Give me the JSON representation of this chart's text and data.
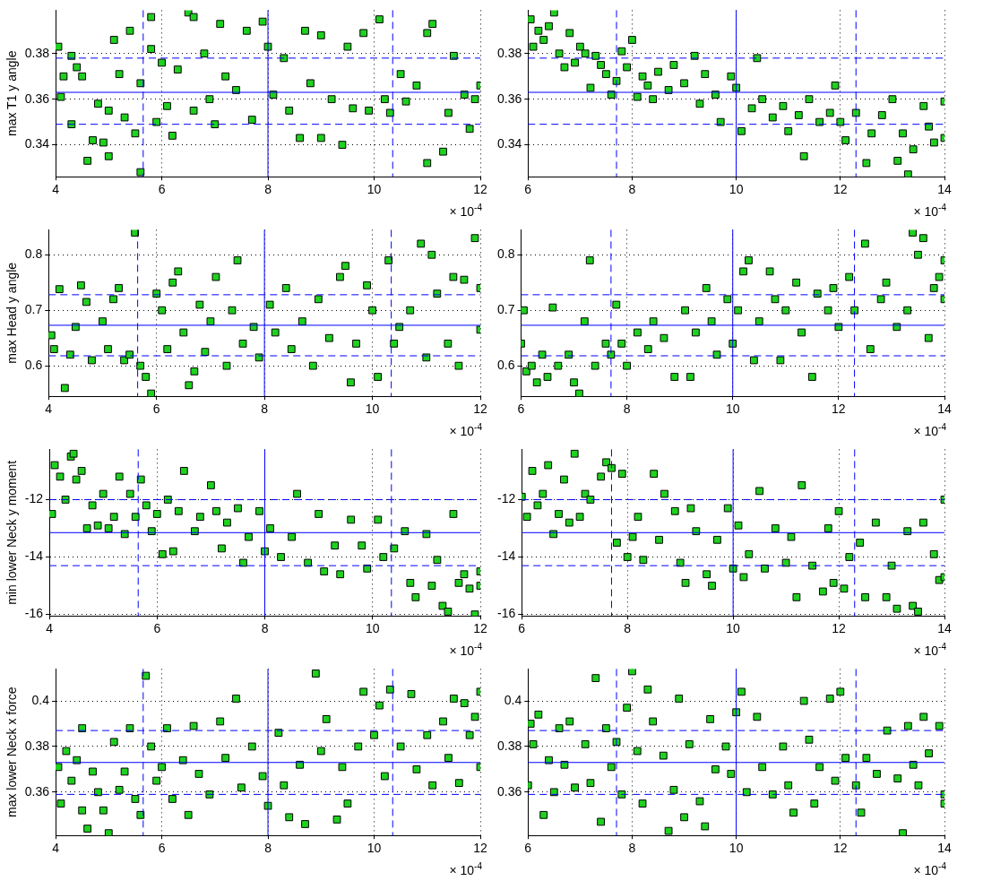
{
  "chart_data": [
    {
      "type": "scatter",
      "ylabel": "max T1 y angle",
      "xlabel": "× 10$^{-4}$",
      "color": "#1fd21f",
      "marker": "square",
      "grid": true,
      "xlim": [
        4,
        12
      ],
      "xticks": [
        4,
        6,
        8,
        10,
        12
      ],
      "ylim": [
        0.326,
        0.399
      ],
      "yticks": [
        0.34,
        0.36,
        0.38
      ],
      "x": [
        4.05,
        4.15,
        4.1,
        4.3,
        4.4,
        4.3,
        4.5,
        4.6,
        4.7,
        4.8,
        4.9,
        5.0,
        5.0,
        5.1,
        5.2,
        5.3,
        5.4,
        5.5,
        5.6,
        5.6,
        5.8,
        5.8,
        5.9,
        6.0,
        6.1,
        6.2,
        6.3,
        6.5,
        6.6,
        6.6,
        6.8,
        6.9,
        7.0,
        7.1,
        7.2,
        7.4,
        7.6,
        7.7,
        7.9,
        8.0,
        8.1,
        8.3,
        8.4,
        8.6,
        8.7,
        8.8,
        9.0,
        9.0,
        9.2,
        9.4,
        9.5,
        9.6,
        9.8,
        9.9,
        10.1,
        10.2,
        10.3,
        10.5,
        10.6,
        10.8,
        11.0,
        11.0,
        11.1,
        11.3,
        11.4,
        11.5,
        11.7,
        11.8,
        11.9,
        12.0
      ],
      "values": [
        0.383,
        0.37,
        0.361,
        0.379,
        0.374,
        0.349,
        0.37,
        0.333,
        0.342,
        0.358,
        0.341,
        0.335,
        0.355,
        0.386,
        0.371,
        0.352,
        0.39,
        0.345,
        0.328,
        0.367,
        0.396,
        0.382,
        0.35,
        0.376,
        0.357,
        0.344,
        0.373,
        0.398,
        0.396,
        0.355,
        0.38,
        0.36,
        0.349,
        0.393,
        0.37,
        0.364,
        0.39,
        0.351,
        0.394,
        0.383,
        0.362,
        0.378,
        0.355,
        0.343,
        0.39,
        0.367,
        0.343,
        0.388,
        0.36,
        0.34,
        0.383,
        0.356,
        0.389,
        0.355,
        0.395,
        0.36,
        0.354,
        0.371,
        0.359,
        0.366,
        0.332,
        0.389,
        0.393,
        0.337,
        0.354,
        0.379,
        0.362,
        0.347,
        0.36,
        0.366
      ],
      "ref_lines": [
        {
          "axis": "x",
          "value": 8,
          "color": "#0000ff",
          "line_style": "solid"
        },
        {
          "axis": "x",
          "value": 5.65,
          "color": "#0000ff",
          "line_style": "dashed"
        },
        {
          "axis": "x",
          "value": 10.35,
          "color": "#0000ff",
          "line_style": "dashed"
        },
        {
          "axis": "y",
          "value": 0.363,
          "color": "#0000ff",
          "line_style": "solid"
        },
        {
          "axis": "y",
          "value": 0.378,
          "color": "#0000ff",
          "line_style": "dashed"
        },
        {
          "axis": "y",
          "value": 0.349,
          "color": "#0000ff",
          "line_style": "dashed"
        }
      ]
    },
    {
      "type": "scatter",
      "xlabel": "× 10$^{-4}$",
      "color": "#1fd21f",
      "marker": "square",
      "grid": true,
      "xlim": [
        6,
        14
      ],
      "xticks": [
        6,
        8,
        10,
        12,
        14
      ],
      "ylim": [
        0.326,
        0.399
      ],
      "yticks": [
        0.34,
        0.36,
        0.38
      ],
      "x": [
        6.05,
        6.1,
        6.2,
        6.3,
        6.4,
        6.5,
        6.6,
        6.7,
        6.8,
        6.9,
        7.0,
        7.1,
        7.2,
        7.3,
        7.4,
        7.5,
        7.6,
        7.7,
        7.8,
        7.9,
        8.0,
        8.1,
        8.2,
        8.3,
        8.4,
        8.5,
        8.7,
        8.8,
        9.0,
        9.2,
        9.3,
        9.4,
        9.6,
        9.7,
        9.9,
        10.0,
        10.1,
        10.3,
        10.4,
        10.5,
        10.7,
        10.9,
        11.0,
        11.2,
        11.3,
        11.4,
        11.6,
        11.8,
        11.9,
        12.0,
        12.1,
        12.3,
        12.5,
        12.6,
        12.8,
        13.0,
        13.1,
        13.2,
        13.3,
        13.4,
        13.6,
        13.7,
        13.8,
        14.0,
        14.0
      ],
      "values": [
        0.395,
        0.383,
        0.39,
        0.386,
        0.392,
        0.398,
        0.38,
        0.374,
        0.389,
        0.376,
        0.383,
        0.38,
        0.365,
        0.379,
        0.375,
        0.371,
        0.362,
        0.368,
        0.381,
        0.374,
        0.386,
        0.361,
        0.37,
        0.366,
        0.36,
        0.372,
        0.364,
        0.375,
        0.367,
        0.379,
        0.358,
        0.371,
        0.362,
        0.35,
        0.37,
        0.365,
        0.346,
        0.356,
        0.378,
        0.36,
        0.352,
        0.357,
        0.346,
        0.353,
        0.335,
        0.36,
        0.35,
        0.354,
        0.366,
        0.35,
        0.342,
        0.354,
        0.332,
        0.345,
        0.353,
        0.36,
        0.333,
        0.345,
        0.327,
        0.338,
        0.357,
        0.348,
        0.341,
        0.359,
        0.343
      ],
      "ref_lines": [
        {
          "axis": "x",
          "value": 10,
          "color": "#0000ff",
          "line_style": "solid"
        },
        {
          "axis": "x",
          "value": 7.7,
          "color": "#0000ff",
          "line_style": "dashed"
        },
        {
          "axis": "x",
          "value": 12.3,
          "color": "#0000ff",
          "line_style": "dashed"
        },
        {
          "axis": "y",
          "value": 0.363,
          "color": "#0000ff",
          "line_style": "solid"
        },
        {
          "axis": "y",
          "value": 0.378,
          "color": "#0000ff",
          "line_style": "dashed"
        },
        {
          "axis": "y",
          "value": 0.349,
          "color": "#0000ff",
          "line_style": "dashed"
        }
      ]
    },
    {
      "type": "scatter",
      "ylabel": "max Head y angle",
      "xlabel": "× 10$^{-4}$",
      "color": "#1fd21f",
      "marker": "square",
      "grid": true,
      "xlim": [
        4,
        12
      ],
      "xticks": [
        4,
        6,
        8,
        10,
        12
      ],
      "ylim": [
        0.545,
        0.845
      ],
      "yticks": [
        0.6,
        0.7,
        0.8
      ],
      "x": [
        4.05,
        4.1,
        4.2,
        4.3,
        4.4,
        4.5,
        4.6,
        4.7,
        4.8,
        5.0,
        5.1,
        5.2,
        5.3,
        5.4,
        5.5,
        5.6,
        5.7,
        5.8,
        5.9,
        6.0,
        6.1,
        6.2,
        6.3,
        6.4,
        6.5,
        6.6,
        6.7,
        6.8,
        6.9,
        7.0,
        7.1,
        7.3,
        7.4,
        7.5,
        7.6,
        7.8,
        7.9,
        8.1,
        8.2,
        8.4,
        8.5,
        8.7,
        8.9,
        9.0,
        9.2,
        9.4,
        9.5,
        9.6,
        9.7,
        9.9,
        10.0,
        10.1,
        10.3,
        10.4,
        10.5,
        10.7,
        10.9,
        11.0,
        11.1,
        11.2,
        11.4,
        11.5,
        11.6,
        11.7,
        11.9,
        12.0,
        12.0
      ],
      "values": [
        0.655,
        0.63,
        0.738,
        0.56,
        0.62,
        0.67,
        0.745,
        0.715,
        0.61,
        0.68,
        0.63,
        0.72,
        0.74,
        0.61,
        0.62,
        0.84,
        0.6,
        0.58,
        0.55,
        0.73,
        0.7,
        0.63,
        0.75,
        0.77,
        0.66,
        0.565,
        0.59,
        0.71,
        0.625,
        0.68,
        0.76,
        0.6,
        0.7,
        0.79,
        0.64,
        0.67,
        0.615,
        0.71,
        0.66,
        0.74,
        0.63,
        0.68,
        0.6,
        0.72,
        0.65,
        0.76,
        0.78,
        0.57,
        0.64,
        0.745,
        0.7,
        0.58,
        0.79,
        0.64,
        0.67,
        0.7,
        0.82,
        0.615,
        0.8,
        0.73,
        0.64,
        0.76,
        0.6,
        0.755,
        0.83,
        0.74,
        0.665
      ],
      "ref_lines": [
        {
          "axis": "x",
          "value": 8,
          "color": "#0000ff",
          "line_style": "solid"
        },
        {
          "axis": "x",
          "value": 5.65,
          "color": "#0000ff",
          "line_style": "dashed"
        },
        {
          "axis": "x",
          "value": 10.35,
          "color": "#0000ff",
          "line_style": "dashed"
        },
        {
          "axis": "y",
          "value": 0.673,
          "color": "#0000ff",
          "line_style": "solid"
        },
        {
          "axis": "y",
          "value": 0.728,
          "color": "#0000ff",
          "line_style": "dashed"
        },
        {
          "axis": "y",
          "value": 0.618,
          "color": "#0000ff",
          "line_style": "dashed"
        }
      ]
    },
    {
      "type": "scatter",
      "xlabel": "× 10$^{-4}$",
      "color": "#1fd21f",
      "marker": "square",
      "grid": true,
      "xlim": [
        6,
        14
      ],
      "xticks": [
        6,
        8,
        10,
        12,
        14
      ],
      "ylim": [
        0.545,
        0.845
      ],
      "yticks": [
        0.6,
        0.7,
        0.8
      ],
      "x": [
        6.0,
        6.05,
        6.1,
        6.2,
        6.3,
        6.4,
        6.5,
        6.6,
        6.7,
        6.9,
        7.0,
        7.1,
        7.2,
        7.3,
        7.4,
        7.6,
        7.7,
        7.8,
        7.9,
        8.0,
        8.2,
        8.4,
        8.5,
        8.7,
        8.9,
        9.1,
        9.2,
        9.3,
        9.5,
        9.6,
        9.7,
        9.9,
        10.0,
        10.1,
        10.2,
        10.3,
        10.4,
        10.5,
        10.7,
        10.8,
        10.9,
        11.0,
        11.2,
        11.3,
        11.5,
        11.6,
        11.8,
        11.9,
        12.0,
        12.2,
        12.3,
        12.5,
        12.6,
        12.8,
        12.9,
        13.1,
        13.3,
        13.4,
        13.5,
        13.6,
        13.7,
        13.8,
        13.9,
        14.0,
        14.0
      ],
      "values": [
        0.64,
        0.7,
        0.59,
        0.6,
        0.57,
        0.62,
        0.58,
        0.705,
        0.6,
        0.62,
        0.57,
        0.55,
        0.68,
        0.79,
        0.6,
        0.64,
        0.62,
        0.71,
        0.64,
        0.6,
        0.66,
        0.63,
        0.68,
        0.65,
        0.58,
        0.7,
        0.58,
        0.66,
        0.74,
        0.68,
        0.62,
        0.72,
        0.64,
        0.7,
        0.77,
        0.79,
        0.61,
        0.68,
        0.77,
        0.72,
        0.61,
        0.7,
        0.75,
        0.66,
        0.58,
        0.73,
        0.7,
        0.74,
        0.67,
        0.76,
        0.7,
        0.82,
        0.63,
        0.72,
        0.75,
        0.67,
        0.7,
        0.84,
        0.8,
        0.83,
        0.65,
        0.74,
        0.76,
        0.79,
        0.72
      ],
      "ref_lines": [
        {
          "axis": "x",
          "value": 10,
          "color": "#0000ff",
          "line_style": "solid"
        },
        {
          "axis": "x",
          "value": 7.7,
          "color": "#0000ff",
          "line_style": "dashed"
        },
        {
          "axis": "x",
          "value": 12.3,
          "color": "#0000ff",
          "line_style": "dashed"
        },
        {
          "axis": "y",
          "value": 0.673,
          "color": "#0000ff",
          "line_style": "solid"
        },
        {
          "axis": "y",
          "value": 0.728,
          "color": "#0000ff",
          "line_style": "dashed"
        },
        {
          "axis": "y",
          "value": 0.618,
          "color": "#0000ff",
          "line_style": "dashed"
        }
      ]
    },
    {
      "type": "scatter",
      "ylabel": "min lower Neck y moment",
      "xlabel": "× 10$^{-4}$",
      "color": "#1fd21f",
      "marker": "square",
      "grid": true,
      "xlim": [
        4,
        12
      ],
      "xticks": [
        4,
        6,
        8,
        10,
        12
      ],
      "ylim": [
        -16.05,
        -10.25
      ],
      "yticks": [
        -16,
        -14,
        -12
      ],
      "x": [
        4.05,
        4.1,
        4.2,
        4.3,
        4.4,
        4.45,
        4.5,
        4.6,
        4.7,
        4.8,
        4.9,
        5.0,
        5.1,
        5.2,
        5.3,
        5.4,
        5.5,
        5.6,
        5.7,
        5.8,
        5.9,
        6.0,
        6.1,
        6.2,
        6.3,
        6.4,
        6.5,
        6.7,
        6.8,
        7.0,
        7.1,
        7.2,
        7.3,
        7.5,
        7.6,
        7.7,
        7.9,
        8.0,
        8.1,
        8.3,
        8.5,
        8.6,
        8.8,
        9.0,
        9.1,
        9.3,
        9.4,
        9.6,
        9.8,
        9.9,
        10.1,
        10.2,
        10.4,
        10.6,
        10.7,
        10.8,
        11.0,
        11.1,
        11.2,
        11.3,
        11.4,
        11.5,
        11.6,
        11.7,
        11.8,
        11.9,
        12.0,
        12.0
      ],
      "values": [
        -12.5,
        -10.8,
        -11.2,
        -12.0,
        -10.5,
        -10.4,
        -11.3,
        -11.0,
        -13.0,
        -12.2,
        -12.9,
        -11.8,
        -13.0,
        -12.6,
        -11.2,
        -13.2,
        -11.8,
        -12.6,
        -11.3,
        -12.2,
        -13.1,
        -12.5,
        -13.9,
        -12.0,
        -13.8,
        -12.4,
        -11.0,
        -13.1,
        -12.6,
        -11.5,
        -12.4,
        -13.7,
        -12.8,
        -12.3,
        -14.2,
        -13.3,
        -12.4,
        -13.8,
        -13.0,
        -14.0,
        -13.3,
        -11.8,
        -14.2,
        -12.5,
        -14.5,
        -13.6,
        -14.6,
        -12.7,
        -13.6,
        -14.4,
        -12.7,
        -14.0,
        -13.7,
        -13.1,
        -14.9,
        -15.4,
        -13.2,
        -15.0,
        -14.1,
        -15.7,
        -15.9,
        -12.5,
        -14.9,
        -14.6,
        -15.1,
        -16.0,
        -14.5,
        -15.0
      ],
      "ref_lines": [
        {
          "axis": "x",
          "value": 8,
          "color": "#0000ff",
          "line_style": "solid"
        },
        {
          "axis": "x",
          "value": 5.65,
          "color": "#0000ff",
          "line_style": "dashed"
        },
        {
          "axis": "x",
          "value": 10.35,
          "color": "#0000ff",
          "line_style": "dashed"
        },
        {
          "axis": "y",
          "value": -13.15,
          "color": "#0000ff",
          "line_style": "solid"
        },
        {
          "axis": "y",
          "value": -12.0,
          "color": "#0000ff",
          "line_style": "dashed"
        },
        {
          "axis": "y",
          "value": -14.3,
          "color": "#0000ff",
          "line_style": "dashed"
        }
      ]
    },
    {
      "type": "scatter",
      "xlabel": "× 10$^{-4}$",
      "color": "#1fd21f",
      "marker": "square",
      "grid": true,
      "xlim": [
        6,
        14
      ],
      "xticks": [
        6,
        8,
        10,
        12,
        14
      ],
      "ylim": [
        -16.05,
        -10.25
      ],
      "yticks": [
        -16,
        -14,
        -12
      ],
      "x": [
        6.0,
        6.1,
        6.2,
        6.3,
        6.4,
        6.5,
        6.6,
        6.7,
        6.8,
        6.9,
        7.0,
        7.1,
        7.2,
        7.3,
        7.5,
        7.6,
        7.7,
        7.8,
        7.9,
        8.0,
        8.1,
        8.2,
        8.3,
        8.5,
        8.6,
        8.7,
        8.9,
        9.0,
        9.1,
        9.2,
        9.3,
        9.5,
        9.6,
        9.7,
        9.9,
        10.0,
        10.1,
        10.2,
        10.3,
        10.5,
        10.6,
        10.8,
        11.0,
        11.1,
        11.2,
        11.3,
        11.5,
        11.7,
        11.8,
        11.9,
        12.0,
        12.1,
        12.2,
        12.4,
        12.5,
        12.7,
        12.9,
        13.0,
        13.1,
        13.3,
        13.4,
        13.5,
        13.6,
        13.8,
        13.9,
        14.0,
        14.0
      ],
      "values": [
        -11.9,
        -12.6,
        -11.0,
        -12.2,
        -11.8,
        -10.8,
        -13.2,
        -12.5,
        -11.3,
        -12.8,
        -10.4,
        -12.6,
        -11.8,
        -12.0,
        -11.2,
        -10.7,
        -10.9,
        -13.5,
        -11.1,
        -14.0,
        -13.3,
        -12.6,
        -14.1,
        -11.1,
        -13.4,
        -11.8,
        -12.4,
        -14.2,
        -14.9,
        -12.3,
        -13.1,
        -14.6,
        -15.0,
        -13.4,
        -12.3,
        -14.4,
        -12.9,
        -14.7,
        -13.9,
        -11.7,
        -14.4,
        -13.0,
        -14.2,
        -13.3,
        -15.4,
        -11.5,
        -14.3,
        -15.2,
        -13.0,
        -14.9,
        -12.4,
        -15.1,
        -14.0,
        -13.5,
        -15.4,
        -12.8,
        -15.4,
        -14.3,
        -15.8,
        -13.1,
        -15.7,
        -15.9,
        -12.8,
        -13.9,
        -14.8,
        -12.0,
        -14.7
      ],
      "ref_lines": [
        {
          "axis": "x",
          "value": 10,
          "color": "#0000ff",
          "line_style": "solid"
        },
        {
          "axis": "x",
          "value": 7.7,
          "color": "#0000ff",
          "line_style": "dashed"
        },
        {
          "axis": "x",
          "value": 12.3,
          "color": "#0000ff",
          "line_style": "dashed"
        },
        {
          "axis": "y",
          "value": -13.15,
          "color": "#0000ff",
          "line_style": "solid"
        },
        {
          "axis": "y",
          "value": -12.0,
          "color": "#0000ff",
          "line_style": "dashed"
        },
        {
          "axis": "y",
          "value": -14.3,
          "color": "#0000ff",
          "line_style": "dashed"
        }
      ]
    },
    {
      "type": "scatter",
      "ylabel": "max lower Neck x force",
      "xlabel": "× 10$^{-4}$",
      "color": "#1fd21f",
      "marker": "square",
      "grid": true,
      "xlim": [
        4,
        12
      ],
      "xticks": [
        4,
        6,
        8,
        10,
        12
      ],
      "ylim": [
        0.341,
        0.414
      ],
      "yticks": [
        0.36,
        0.38,
        0.4
      ],
      "x": [
        4.05,
        4.1,
        4.2,
        4.3,
        4.4,
        4.5,
        4.5,
        4.6,
        4.7,
        4.8,
        4.9,
        5.0,
        5.1,
        5.2,
        5.3,
        5.4,
        5.5,
        5.6,
        5.7,
        5.8,
        5.9,
        6.0,
        6.1,
        6.2,
        6.4,
        6.5,
        6.6,
        6.7,
        6.9,
        7.1,
        7.2,
        7.4,
        7.5,
        7.7,
        7.9,
        8.0,
        8.2,
        8.3,
        8.4,
        8.6,
        8.7,
        8.9,
        9.0,
        9.1,
        9.3,
        9.4,
        9.5,
        9.7,
        9.8,
        10.0,
        10.1,
        10.2,
        10.3,
        10.5,
        10.7,
        10.8,
        11.0,
        11.1,
        11.3,
        11.4,
        11.5,
        11.6,
        11.7,
        11.8,
        11.9,
        12.0,
        12.0
      ],
      "values": [
        0.371,
        0.355,
        0.378,
        0.365,
        0.374,
        0.352,
        0.388,
        0.344,
        0.369,
        0.36,
        0.352,
        0.342,
        0.382,
        0.361,
        0.369,
        0.388,
        0.357,
        0.35,
        0.411,
        0.38,
        0.365,
        0.371,
        0.388,
        0.357,
        0.374,
        0.35,
        0.389,
        0.368,
        0.359,
        0.391,
        0.375,
        0.401,
        0.362,
        0.38,
        0.367,
        0.354,
        0.386,
        0.363,
        0.349,
        0.372,
        0.346,
        0.412,
        0.378,
        0.392,
        0.348,
        0.371,
        0.355,
        0.38,
        0.404,
        0.385,
        0.398,
        0.367,
        0.405,
        0.38,
        0.403,
        0.37,
        0.385,
        0.363,
        0.391,
        0.375,
        0.401,
        0.364,
        0.399,
        0.385,
        0.393,
        0.404,
        0.371
      ],
      "ref_lines": [
        {
          "axis": "x",
          "value": 8,
          "color": "#0000ff",
          "line_style": "solid"
        },
        {
          "axis": "x",
          "value": 5.65,
          "color": "#0000ff",
          "line_style": "dashed"
        },
        {
          "axis": "x",
          "value": 10.35,
          "color": "#0000ff",
          "line_style": "dashed"
        },
        {
          "axis": "y",
          "value": 0.373,
          "color": "#0000ff",
          "line_style": "solid"
        },
        {
          "axis": "y",
          "value": 0.387,
          "color": "#0000ff",
          "line_style": "dashed"
        },
        {
          "axis": "y",
          "value": 0.359,
          "color": "#0000ff",
          "line_style": "dashed"
        }
      ]
    },
    {
      "type": "scatter",
      "xlabel": "× 10$^{-4}$",
      "color": "#1fd21f",
      "marker": "square",
      "grid": true,
      "xlim": [
        6,
        14
      ],
      "xticks": [
        6,
        8,
        10,
        12,
        14
      ],
      "ylim": [
        0.341,
        0.414
      ],
      "yticks": [
        0.36,
        0.38,
        0.4
      ],
      "x": [
        6.0,
        6.05,
        6.1,
        6.2,
        6.3,
        6.4,
        6.5,
        6.6,
        6.7,
        6.8,
        6.9,
        7.1,
        7.2,
        7.3,
        7.4,
        7.5,
        7.6,
        7.7,
        7.8,
        7.9,
        8.0,
        8.1,
        8.2,
        8.3,
        8.4,
        8.6,
        8.7,
        8.8,
        8.9,
        9.0,
        9.1,
        9.3,
        9.4,
        9.5,
        9.6,
        9.8,
        9.9,
        10.0,
        10.1,
        10.2,
        10.4,
        10.5,
        10.7,
        10.9,
        11.0,
        11.1,
        11.3,
        11.4,
        11.5,
        11.6,
        11.8,
        11.9,
        12.0,
        12.1,
        12.3,
        12.4,
        12.5,
        12.7,
        12.9,
        13.1,
        13.2,
        13.3,
        13.4,
        13.5,
        13.6,
        13.7,
        13.9,
        14.0,
        14.0
      ],
      "values": [
        0.363,
        0.39,
        0.381,
        0.394,
        0.35,
        0.374,
        0.36,
        0.388,
        0.372,
        0.391,
        0.362,
        0.381,
        0.364,
        0.41,
        0.347,
        0.388,
        0.371,
        0.382,
        0.359,
        0.397,
        0.413,
        0.378,
        0.355,
        0.405,
        0.391,
        0.376,
        0.343,
        0.361,
        0.401,
        0.349,
        0.381,
        0.356,
        0.345,
        0.392,
        0.37,
        0.38,
        0.368,
        0.395,
        0.404,
        0.36,
        0.393,
        0.371,
        0.359,
        0.38,
        0.363,
        0.351,
        0.4,
        0.383,
        0.355,
        0.371,
        0.401,
        0.365,
        0.404,
        0.375,
        0.363,
        0.351,
        0.375,
        0.368,
        0.387,
        0.366,
        0.342,
        0.389,
        0.372,
        0.363,
        0.393,
        0.377,
        0.389,
        0.359,
        0.355
      ],
      "ref_lines": [
        {
          "axis": "x",
          "value": 10,
          "color": "#0000ff",
          "line_style": "solid"
        },
        {
          "axis": "x",
          "value": 7.7,
          "color": "#0000ff",
          "line_style": "dashed"
        },
        {
          "axis": "x",
          "value": 12.3,
          "color": "#0000ff",
          "line_style": "dashed"
        },
        {
          "axis": "y",
          "value": 0.373,
          "color": "#0000ff",
          "line_style": "solid"
        },
        {
          "axis": "y",
          "value": 0.387,
          "color": "#0000ff",
          "line_style": "dashed"
        },
        {
          "axis": "y",
          "value": 0.359,
          "color": "#0000ff",
          "line_style": "dashed"
        }
      ]
    }
  ]
}
